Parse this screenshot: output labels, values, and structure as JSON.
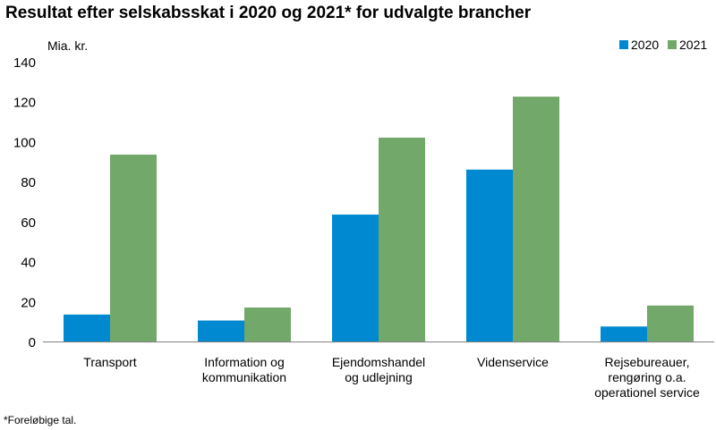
{
  "title": "Resultat efter selskabsskat i 2020 og 2021* for udvalgte brancher",
  "footnote": "*Foreløbige tal.",
  "chart_data": {
    "type": "bar",
    "unit_label": "Mia. kr.",
    "categories": [
      [
        "Transport"
      ],
      [
        "Information og",
        "kommunikation"
      ],
      [
        "Ejendomshandel",
        "og udlejning"
      ],
      [
        "Videnservice"
      ],
      [
        "Rejsebureauer,",
        "rengøring o.a.",
        "operationel service"
      ]
    ],
    "series": [
      {
        "name": "2020",
        "color": "#0089d0",
        "values": [
          13.5,
          10.5,
          63.5,
          86,
          7.5
        ]
      },
      {
        "name": "2021",
        "color": "#72a86a",
        "values": [
          93.5,
          17,
          102,
          122.5,
          18
        ]
      }
    ],
    "ylim": [
      0,
      140
    ],
    "yticks": [
      0,
      20,
      40,
      60,
      80,
      100,
      120,
      140
    ],
    "grid": false,
    "legend_position": "top-right"
  }
}
